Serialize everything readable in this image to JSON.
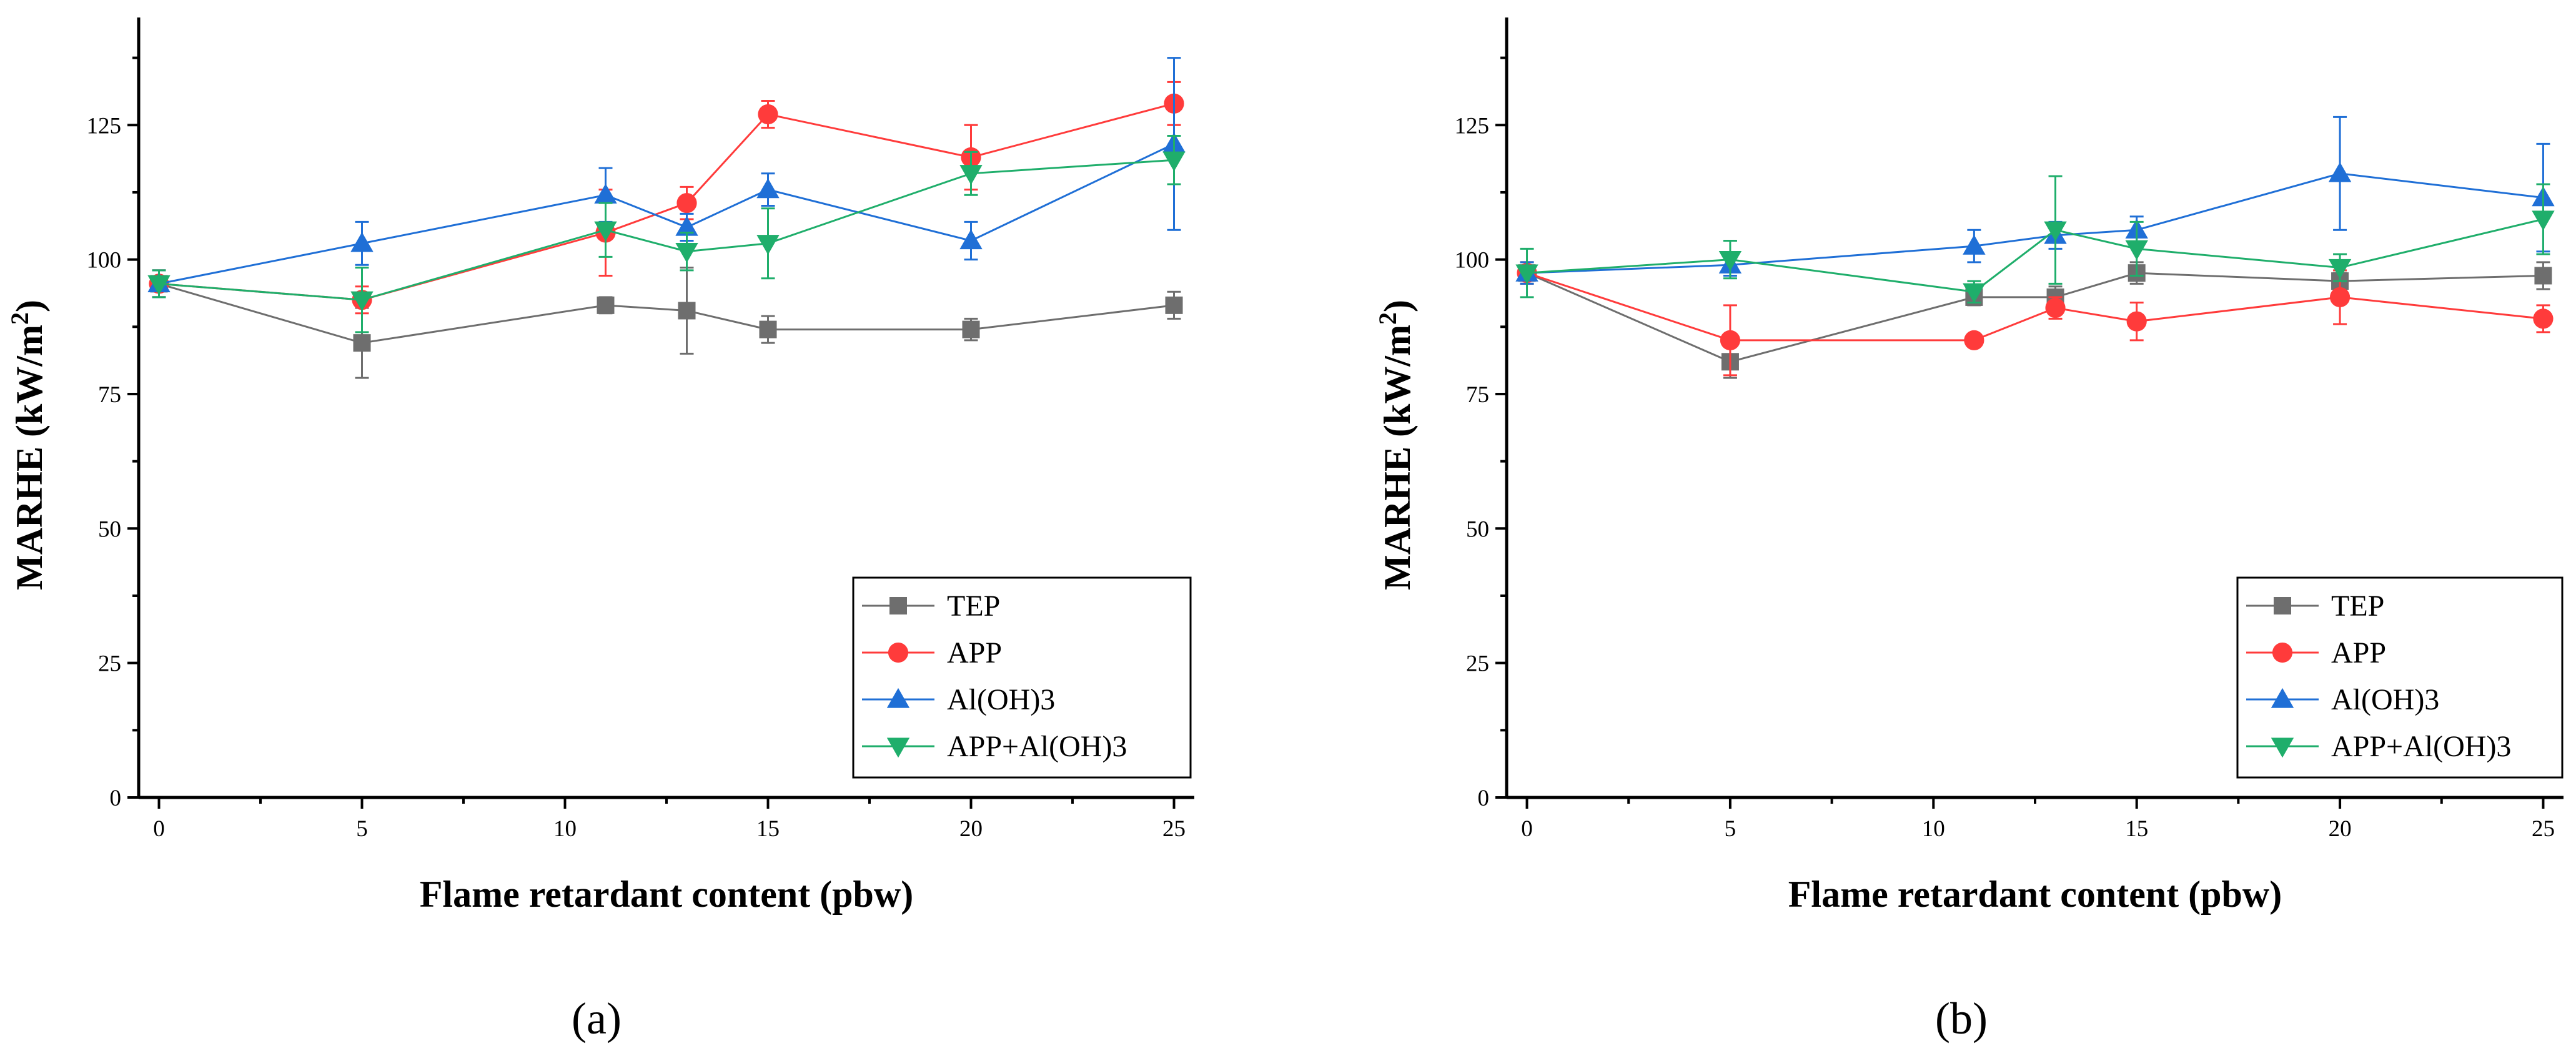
{
  "figure": {
    "panel_labels": [
      "(a)",
      "(b)"
    ]
  },
  "chart_data": [
    {
      "type": "line",
      "panel": "(a)",
      "title": "",
      "xlabel": "Flame retardant content (pbw)",
      "ylabel_main": "MARHE (kW/m",
      "ylabel_sup": "2",
      "ylabel_close": ")",
      "xlim": [
        -0.5,
        25.5
      ],
      "ylim": [
        0,
        145
      ],
      "xticks": [
        0,
        5,
        10,
        15,
        20,
        25
      ],
      "yticks": [
        0,
        25,
        50,
        75,
        100,
        125
      ],
      "x": [
        0,
        5,
        11,
        13,
        15,
        20,
        25
      ],
      "legend_position": "bottom-right",
      "series": [
        {
          "name": "TEP",
          "color": "#6e6e6e",
          "marker": "square",
          "values": [
            95.5,
            84.5,
            91.5,
            90.5,
            87.0,
            87.0,
            91.5
          ],
          "errors": [
            2.5,
            6.5,
            1.5,
            8.0,
            2.5,
            2.0,
            2.5
          ]
        },
        {
          "name": "APP",
          "color": "#ff3b3b",
          "marker": "circle",
          "values": [
            95.5,
            92.5,
            105.0,
            110.5,
            127.0,
            119.0,
            129.0
          ],
          "errors": [
            2.5,
            2.5,
            8.0,
            3.0,
            2.5,
            6.0,
            4.0
          ]
        },
        {
          "name": "Al(OH)3",
          "color": "#1f6fd6",
          "marker": "triangle-up",
          "values": [
            95.5,
            103.0,
            112.0,
            106.0,
            113.0,
            103.5,
            121.5
          ],
          "errors": [
            2.5,
            4.0,
            5.0,
            2.5,
            3.0,
            3.5,
            16.0
          ]
        },
        {
          "name": "APP+Al(OH)3",
          "color": "#1fae6b",
          "marker": "triangle-down",
          "values": [
            95.5,
            92.5,
            105.5,
            101.5,
            103.0,
            116.0,
            118.5
          ],
          "errors": [
            2.5,
            6.0,
            5.0,
            3.5,
            6.5,
            4.0,
            4.5
          ]
        }
      ]
    },
    {
      "type": "line",
      "panel": "(b)",
      "title": "",
      "xlabel": "Flame retardant content (pbw)",
      "ylabel_main": "MARHE (kW/m",
      "ylabel_sup": "2",
      "ylabel_close": ")",
      "xlim": [
        -0.5,
        25.5
      ],
      "ylim": [
        0,
        145
      ],
      "xticks": [
        0,
        5,
        10,
        15,
        20,
        25
      ],
      "yticks": [
        0,
        25,
        50,
        75,
        100,
        125
      ],
      "x": [
        0,
        5,
        11,
        13,
        15,
        20,
        25
      ],
      "legend_position": "bottom-right",
      "series": [
        {
          "name": "TEP",
          "color": "#6e6e6e",
          "marker": "square",
          "values": [
            97.5,
            81.0,
            93.0,
            93.0,
            97.5,
            96.0,
            97.0
          ],
          "errors": [
            2.0,
            3.0,
            1.5,
            2.0,
            2.0,
            1.5,
            2.5
          ]
        },
        {
          "name": "APP",
          "color": "#ff3b3b",
          "marker": "circle",
          "values": [
            97.5,
            85.0,
            85.0,
            91.0,
            88.5,
            93.0,
            89.0
          ],
          "errors": [
            2.0,
            6.5,
            1.0,
            2.0,
            3.5,
            5.0,
            2.5
          ]
        },
        {
          "name": "Al(OH)3",
          "color": "#1f6fd6",
          "marker": "triangle-up",
          "values": [
            97.5,
            99.0,
            102.5,
            104.5,
            105.5,
            116.0,
            111.5
          ],
          "errors": [
            2.0,
            2.0,
            3.0,
            2.5,
            2.5,
            10.5,
            10.0
          ]
        },
        {
          "name": "APP+Al(OH)3",
          "color": "#1fae6b",
          "marker": "triangle-down",
          "values": [
            97.5,
            100.0,
            94.0,
            105.5,
            102.0,
            98.5,
            107.5
          ],
          "errors": [
            4.5,
            3.5,
            2.0,
            10.0,
            5.0,
            2.5,
            6.5
          ]
        }
      ]
    }
  ]
}
